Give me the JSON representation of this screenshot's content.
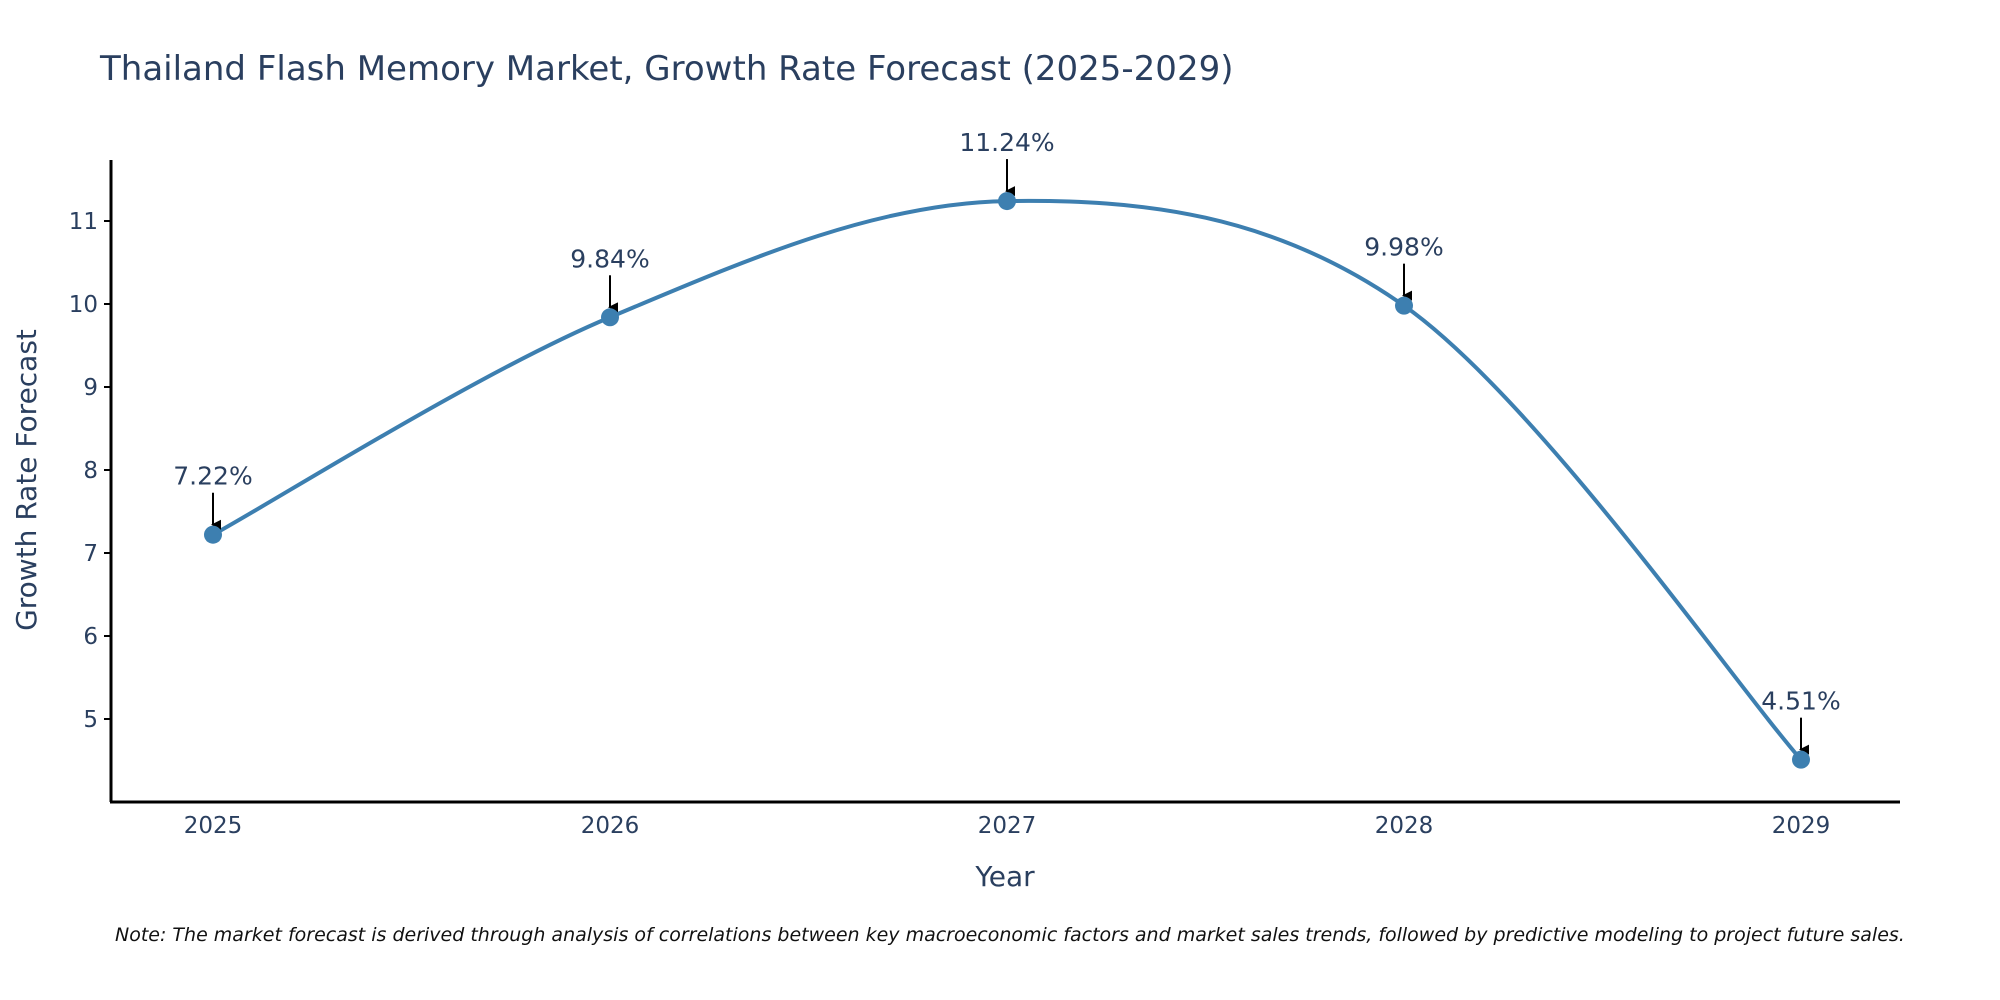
{
  "chart_data": {
    "type": "line",
    "title": "Thailand Flash Memory Market, Growth Rate Forecast (2025-2029)",
    "xlabel": "Year",
    "ylabel": "Growth Rate Forecast",
    "categories": [
      "2025",
      "2026",
      "2027",
      "2028",
      "2029"
    ],
    "series": [
      {
        "name": "Growth Rate Forecast",
        "values": [
          7.22,
          9.84,
          11.24,
          9.98,
          4.51
        ],
        "labels": [
          "7.22%",
          "9.84%",
          "11.24%",
          "9.98%",
          "4.51%"
        ]
      }
    ],
    "yticks": [
      5,
      6,
      7,
      8,
      9,
      10,
      11
    ],
    "ylim": [
      4.0,
      11.7
    ],
    "grid": false,
    "line_shape": "spline",
    "colors": {
      "line": "#3d7fb0",
      "marker": "#3d7fb0",
      "axis": "#000000",
      "text": "#2a3f5f"
    },
    "note": "Note: The market forecast is derived through analysis of correlations between key macroeconomic factors and market sales trends, followed by predictive modeling to project future sales."
  }
}
